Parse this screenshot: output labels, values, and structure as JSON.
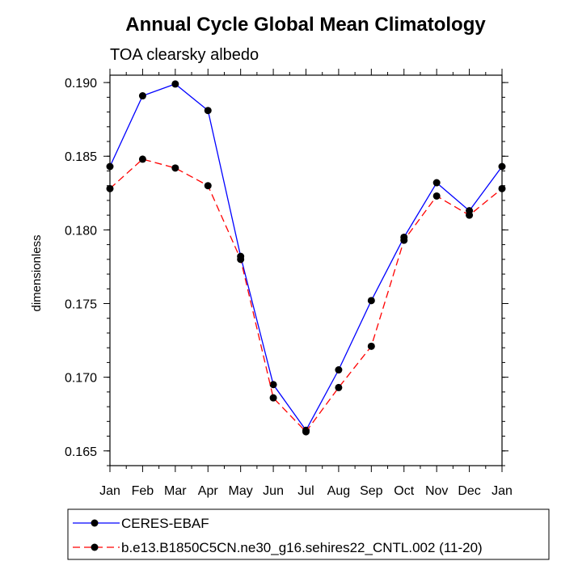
{
  "chart_data": {
    "type": "line",
    "title": "Annual Cycle Global Mean Climatology",
    "subtitle": "TOA clearsky albedo",
    "xlabel": "",
    "ylabel": "dimensionless",
    "categories": [
      "Jan",
      "Feb",
      "Mar",
      "Apr",
      "May",
      "Jun",
      "Jul",
      "Aug",
      "Sep",
      "Oct",
      "Nov",
      "Dec",
      "Jan"
    ],
    "ylim": [
      0.164,
      0.1905
    ],
    "yticks": [
      0.165,
      0.17,
      0.175,
      0.18,
      0.185,
      0.19
    ],
    "ytick_labels": [
      "0.165",
      "0.170",
      "0.175",
      "0.180",
      "0.185",
      "0.190"
    ],
    "grid": false,
    "legend_position": "bottom",
    "series": [
      {
        "name": "CERES-EBAF",
        "color": "#0000ff",
        "line_style": "solid",
        "marker": "circle",
        "values": [
          0.1843,
          0.1891,
          0.1899,
          0.1881,
          0.1782,
          0.1695,
          0.1664,
          0.1705,
          0.1752,
          0.1795,
          0.1832,
          0.1813,
          0.1843
        ]
      },
      {
        "name": "b.e13.B1850C5CN.ne30_g16.sehires22_CNTL.002 (11-20)",
        "color": "#ff0000",
        "line_style": "dashed",
        "marker": "circle",
        "values": [
          0.1828,
          0.1848,
          0.1842,
          0.183,
          0.178,
          0.1686,
          0.1663,
          0.1693,
          0.1721,
          0.1793,
          0.1823,
          0.181,
          0.1828
        ]
      }
    ]
  }
}
